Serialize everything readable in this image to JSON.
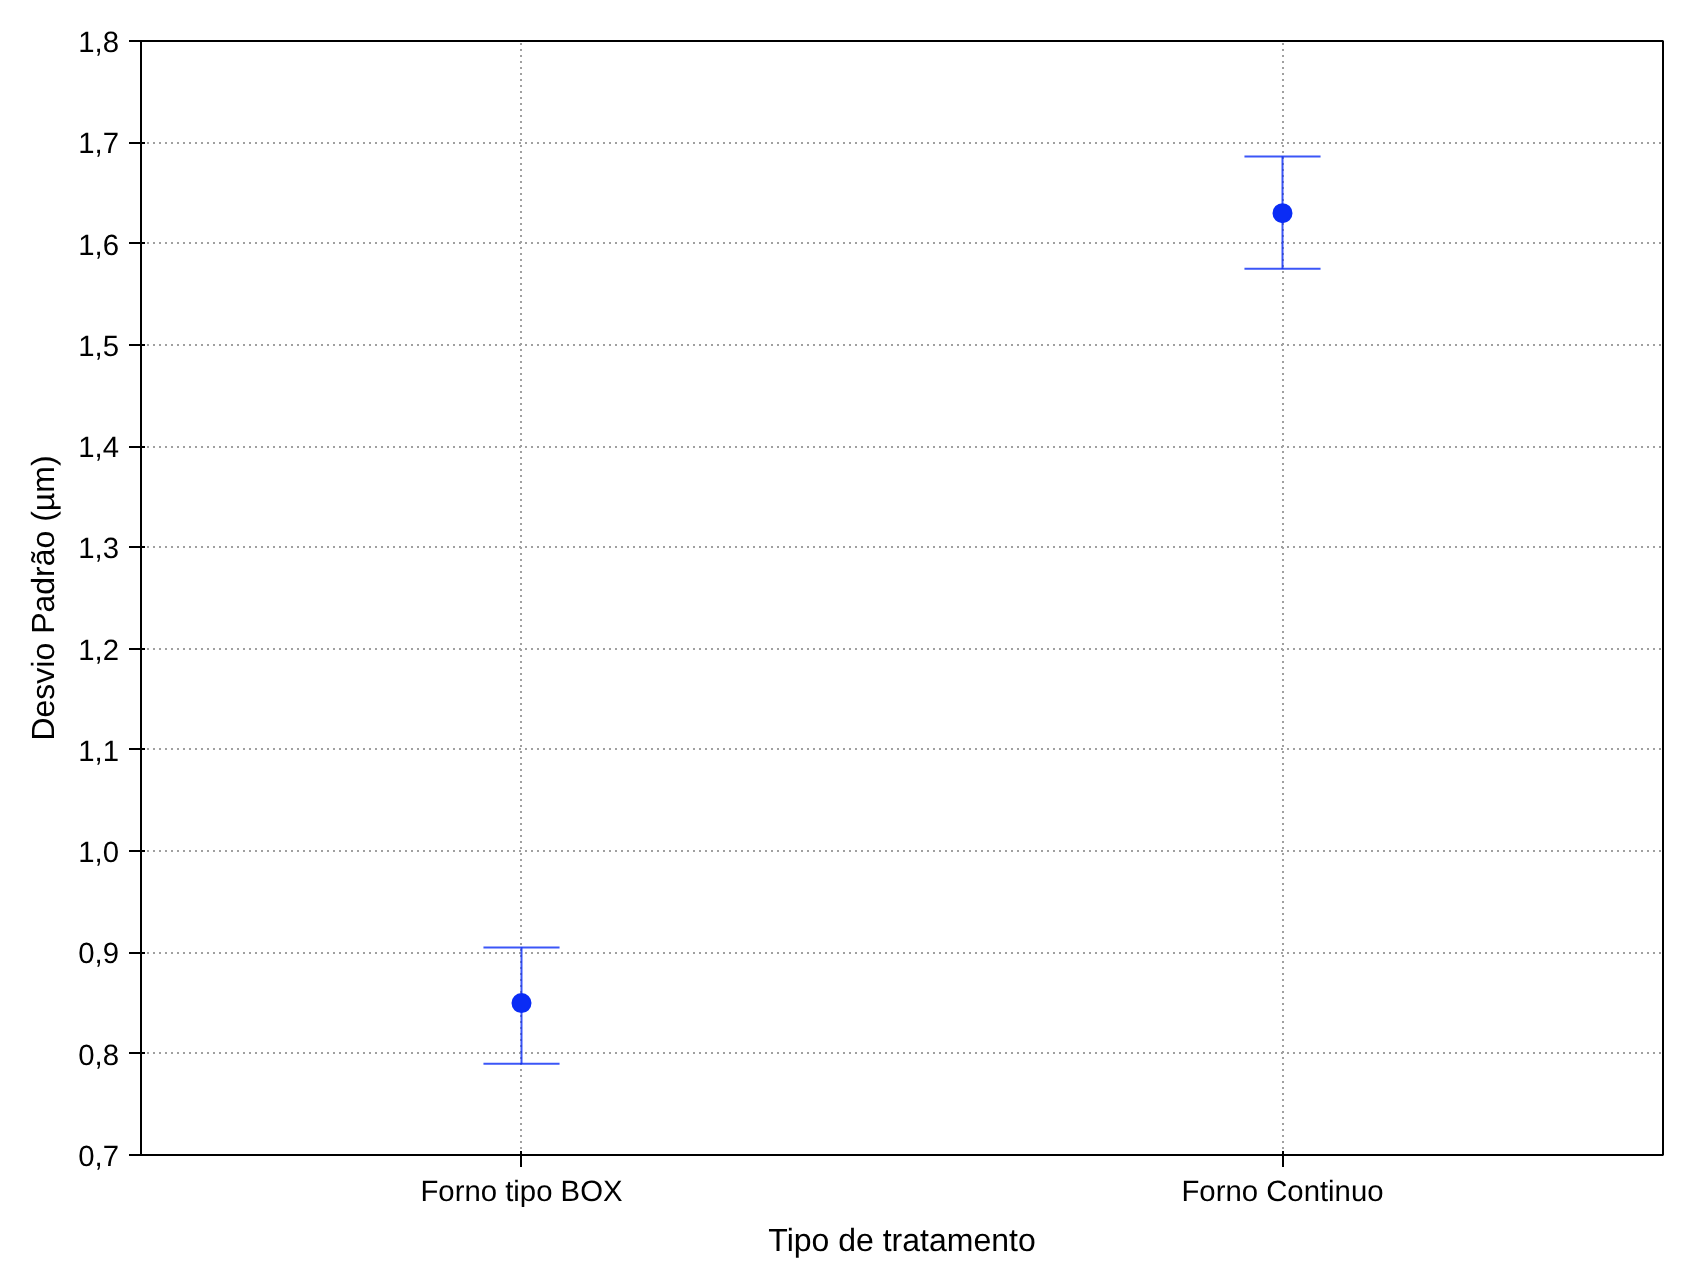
{
  "chart_data": {
    "type": "scatter",
    "xlabel": "Tipo de tratamento",
    "ylabel": "Desvio Padrão (µm)",
    "categories": [
      "Forno tipo BOX",
      "Forno Continuo"
    ],
    "values": [
      0.85,
      1.63
    ],
    "errors": [
      [
        0.79,
        0.905
      ],
      [
        1.575,
        1.686
      ]
    ],
    "color": "#0a2cf5",
    "marker": "circle",
    "ylim": [
      0.7,
      1.8
    ],
    "yticks": [
      {
        "value": 0.7,
        "label": "0,7"
      },
      {
        "value": 0.8,
        "label": "0,8"
      },
      {
        "value": 0.9,
        "label": "0,9"
      },
      {
        "value": 1.0,
        "label": "1,0"
      },
      {
        "value": 1.1,
        "label": "1,1"
      },
      {
        "value": 1.2,
        "label": "1,2"
      },
      {
        "value": 1.3,
        "label": "1,3"
      },
      {
        "value": 1.4,
        "label": "1,4"
      },
      {
        "value": 1.5,
        "label": "1,5"
      },
      {
        "value": 1.6,
        "label": "1,6"
      },
      {
        "value": 1.7,
        "label": "1,7"
      },
      {
        "value": 1.8,
        "label": "1,8"
      }
    ],
    "grid": true
  }
}
